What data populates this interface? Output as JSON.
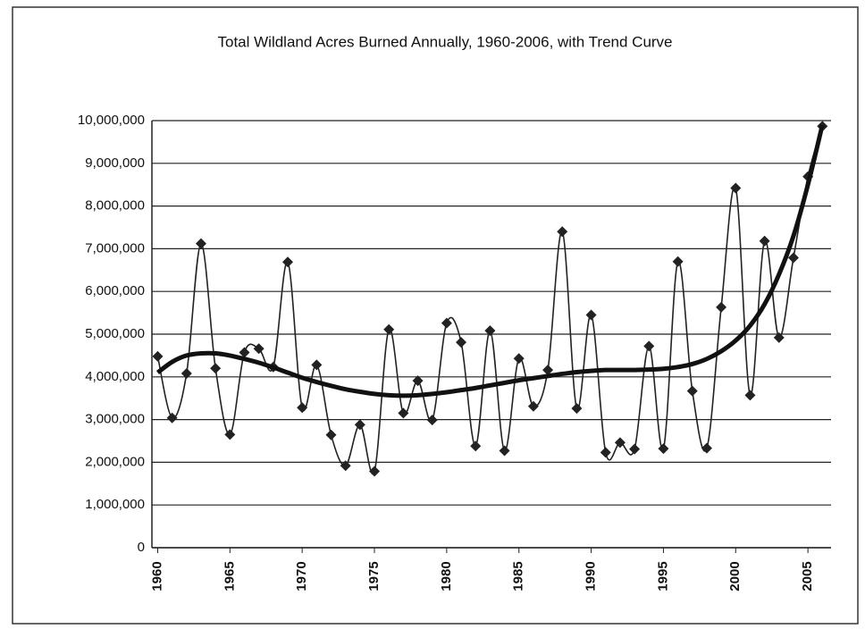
{
  "chart_data": {
    "type": "line",
    "title": "Total Wildland Acres Burned Annually, 1960-2006, with Trend Curve",
    "x": [
      1960,
      1961,
      1962,
      1963,
      1964,
      1965,
      1966,
      1967,
      1968,
      1969,
      1970,
      1971,
      1972,
      1973,
      1974,
      1975,
      1976,
      1977,
      1978,
      1979,
      1980,
      1981,
      1982,
      1983,
      1984,
      1985,
      1986,
      1987,
      1988,
      1989,
      1990,
      1991,
      1992,
      1993,
      1994,
      1995,
      1996,
      1997,
      1998,
      1999,
      2000,
      2001,
      2002,
      2003,
      2004,
      2005,
      2006
    ],
    "series": [
      {
        "color": "#222222",
        "values": [
          4480000,
          3040000,
          4080000,
          7120000,
          4200000,
          2650000,
          4570000,
          4660000,
          4230000,
          6690000,
          3280000,
          4280000,
          2640000,
          1920000,
          2880000,
          1790000,
          5110000,
          3150000,
          3910000,
          2990000,
          5260000,
          4810000,
          2380000,
          5080000,
          2270000,
          4430000,
          3310000,
          4160000,
          7400000,
          3260000,
          5450000,
          2230000,
          2460000,
          2310000,
          4720000,
          2320000,
          6700000,
          3670000,
          2330000,
          5630000,
          8420000,
          3570000,
          7180000,
          4920000,
          6790000,
          8690000,
          9870000
        ]
      },
      {
        "color": "#111111",
        "values": [
          4100000,
          4350000,
          4500000,
          4550000,
          4550000,
          4500000,
          4420000,
          4330000,
          4220000,
          4100000,
          3980000,
          3880000,
          3790000,
          3710000,
          3650000,
          3600000,
          3570000,
          3560000,
          3570000,
          3600000,
          3640000,
          3690000,
          3740000,
          3800000,
          3860000,
          3920000,
          3970000,
          4020000,
          4070000,
          4110000,
          4140000,
          4160000,
          4160000,
          4160000,
          4170000,
          4190000,
          4230000,
          4300000,
          4420000,
          4600000,
          4850000,
          5200000,
          5700000,
          6400000,
          7300000,
          8500000,
          9900000
        ]
      }
    ],
    "xlim": [
      1959.6,
      2006.6
    ],
    "xticks": [
      1960,
      1965,
      1970,
      1975,
      1980,
      1985,
      1990,
      1995,
      2000,
      2005
    ],
    "ylim": [
      0,
      10000000
    ],
    "yticks": [
      0,
      {
        "value": 1000000,
        "label": "1,000,000"
      },
      {
        "value": 2000000,
        "label": "2,000,000"
      },
      {
        "value": 3000000,
        "label": "3,000,000"
      },
      {
        "value": 4000000,
        "label": "4,000,000"
      },
      {
        "value": 5000000,
        "label": "5,000,000"
      },
      {
        "value": 6000000,
        "label": "6,000,000"
      },
      {
        "value": 7000000,
        "label": "7,000,000"
      },
      {
        "value": 8000000,
        "label": "8,000,000"
      },
      {
        "value": 9000000,
        "label": "9,000,000"
      },
      {
        "value": 10000000,
        "label": "10,000,000"
      }
    ],
    "grid": true
  }
}
